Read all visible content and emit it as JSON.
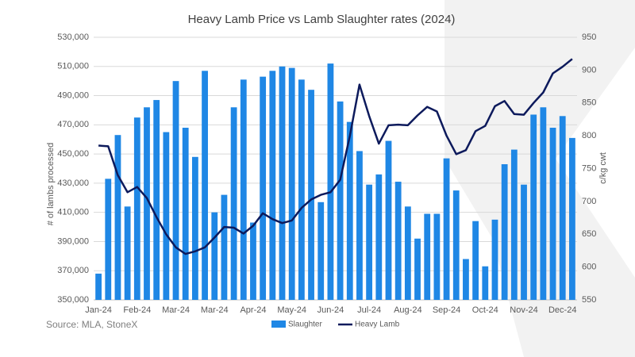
{
  "chart_data": {
    "type": "bar-line",
    "title": "Heavy Lamb Price vs Lamb Slaughter rates (2024)",
    "source": "Source: MLA, StoneX",
    "ylabel": "# of lambs processed",
    "y2label": "c/kg cwt",
    "categories": [
      "Jan-24",
      null,
      null,
      null,
      "Feb-24",
      null,
      null,
      null,
      "Mar-24",
      null,
      null,
      null,
      "Mar-24",
      null,
      null,
      null,
      "Apr-24",
      null,
      null,
      null,
      "May-24",
      null,
      null,
      null,
      "Jun-24",
      null,
      null,
      null,
      "Jul-24",
      null,
      null,
      null,
      "Aug-24",
      null,
      null,
      null,
      "Sep-24",
      null,
      null,
      null,
      "Oct-24",
      null,
      null,
      null,
      "Nov-24",
      null,
      null,
      null,
      "Dec-24",
      null
    ],
    "series": [
      {
        "name": "Slaughter",
        "color": "#1f87e5",
        "axis": "y",
        "values": [
          368000,
          433000,
          463000,
          414000,
          475000,
          482000,
          487000,
          465000,
          500000,
          468000,
          448000,
          507000,
          410000,
          422000,
          482000,
          501000,
          403000,
          503000,
          507000,
          510000,
          509000,
          501000,
          494000,
          417000,
          512000,
          486000,
          472000,
          452000,
          429000,
          436000,
          459000,
          431000,
          414000,
          392000,
          409000,
          409000,
          447000,
          425000,
          378000,
          404000,
          373000,
          405000,
          443000,
          453000,
          429000,
          477000,
          482000,
          468000,
          476000,
          461000
        ]
      },
      {
        "name": "Heavy Lamb",
        "color": "#0d1a5c",
        "axis": "y2",
        "values": [
          785,
          784,
          740,
          714,
          722,
          705,
          676,
          650,
          630,
          620,
          624,
          630,
          645,
          661,
          660,
          651,
          663,
          682,
          673,
          667,
          671,
          690,
          703,
          710,
          714,
          733,
          800,
          878,
          830,
          788,
          816,
          817,
          816,
          831,
          844,
          837,
          800,
          772,
          778,
          807,
          815,
          845,
          853,
          833,
          832,
          850,
          866,
          895,
          905,
          917
        ]
      }
    ],
    "ylim": [
      350000,
      530000
    ],
    "yticks": [
      {
        "value": 350000,
        "label": "350,000"
      },
      {
        "value": 370000,
        "label": "370,000"
      },
      {
        "value": 390000,
        "label": "390,000"
      },
      {
        "value": 410000,
        "label": "410,000"
      },
      {
        "value": 430000,
        "label": "430,000"
      },
      {
        "value": 450000,
        "label": "450,000"
      },
      {
        "value": 470000,
        "label": "470,000"
      },
      {
        "value": 490000,
        "label": "490,000"
      },
      {
        "value": 510000,
        "label": "510,000"
      },
      {
        "value": 530000,
        "label": "530,000"
      }
    ],
    "y2lim": [
      550,
      950
    ],
    "y2ticks": [
      550,
      600,
      650,
      700,
      750,
      800,
      850,
      900,
      950
    ]
  }
}
